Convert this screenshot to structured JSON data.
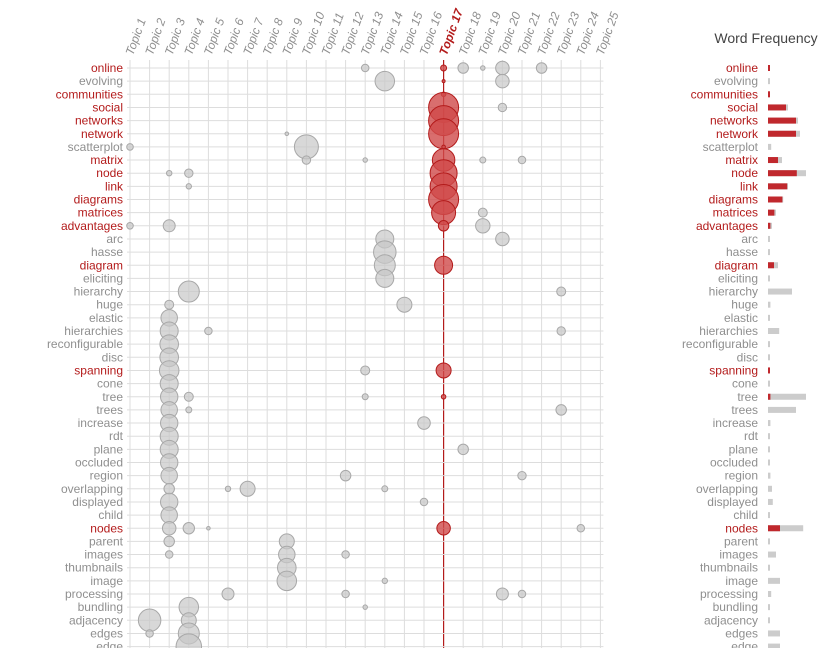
{
  "colors": {
    "highlight": "#b31b1b",
    "muted": "#8f8f8f",
    "bubble_fill": "#c8c8c8",
    "bubble_stroke": "#a8a8a8",
    "highlight_fill": "#cf4a4a",
    "grid": "#dddddd",
    "bar_grey": "#cccccc",
    "bar_red": "#c0282d"
  },
  "frequency_panel": {
    "title": "Word Frequency"
  },
  "chart_data": {
    "type": "scatter",
    "subtype": "termite-bubble-matrix",
    "selected_topic": "Topic 17",
    "topics": [
      "Topic 1",
      "Topic 2",
      "Topic 3",
      "Topic 4",
      "Topic 5",
      "Topic 6",
      "Topic 7",
      "Topic 8",
      "Topic 9",
      "Topic 10",
      "Topic 11",
      "Topic 12",
      "Topic 13",
      "Topic 14",
      "Topic 15",
      "Topic 16",
      "Topic 17",
      "Topic 18",
      "Topic 19",
      "Topic 20",
      "Topic 21",
      "Topic 22",
      "Topic 23",
      "Topic 24",
      "Topic 25"
    ],
    "words": [
      {
        "w": "online",
        "hl": true,
        "fg": 0.04,
        "fr": 0.03
      },
      {
        "w": "evolving",
        "hl": false,
        "fg": 0.03,
        "fr": 0
      },
      {
        "w": "communities",
        "hl": true,
        "fg": 0.03,
        "fr": 0.03
      },
      {
        "w": "social",
        "hl": true,
        "fg": 0.5,
        "fr": 0.45
      },
      {
        "w": "networks",
        "hl": true,
        "fg": 0.75,
        "fr": 0.7
      },
      {
        "w": "network",
        "hl": true,
        "fg": 0.8,
        "fr": 0.7
      },
      {
        "w": "scatterplot",
        "hl": false,
        "fg": 0.08,
        "fr": 0
      },
      {
        "w": "matrix",
        "hl": true,
        "fg": 0.35,
        "fr": 0.25
      },
      {
        "w": "node",
        "hl": true,
        "fg": 0.95,
        "fr": 0.72
      },
      {
        "w": "link",
        "hl": true,
        "fg": 0.5,
        "fr": 0.48
      },
      {
        "w": "diagrams",
        "hl": true,
        "fg": 0.38,
        "fr": 0.36
      },
      {
        "w": "matrices",
        "hl": true,
        "fg": 0.2,
        "fr": 0.16
      },
      {
        "w": "advantages",
        "hl": true,
        "fg": 0.1,
        "fr": 0.06
      },
      {
        "w": "arc",
        "hl": false,
        "fg": 0.04,
        "fr": 0
      },
      {
        "w": "hasse",
        "hl": false,
        "fg": 0.02,
        "fr": 0
      },
      {
        "w": "diagram",
        "hl": true,
        "fg": 0.25,
        "fr": 0.15
      },
      {
        "w": "eliciting",
        "hl": false,
        "fg": 0.02,
        "fr": 0
      },
      {
        "w": "hierarchy",
        "hl": false,
        "fg": 0.6,
        "fr": 0
      },
      {
        "w": "huge",
        "hl": false,
        "fg": 0.06,
        "fr": 0
      },
      {
        "w": "elastic",
        "hl": false,
        "fg": 0.03,
        "fr": 0
      },
      {
        "w": "hierarchies",
        "hl": false,
        "fg": 0.28,
        "fr": 0
      },
      {
        "w": "reconfigurable",
        "hl": false,
        "fg": 0.02,
        "fr": 0
      },
      {
        "w": "disc",
        "hl": false,
        "fg": 0.02,
        "fr": 0
      },
      {
        "w": "spanning",
        "hl": true,
        "fg": 0.04,
        "fr": 0.03
      },
      {
        "w": "cone",
        "hl": false,
        "fg": 0.04,
        "fr": 0
      },
      {
        "w": "tree",
        "hl": false,
        "fg": 0.95,
        "fr": 0.06
      },
      {
        "w": "trees",
        "hl": false,
        "fg": 0.7,
        "fr": 0
      },
      {
        "w": "increase",
        "hl": false,
        "fg": 0.06,
        "fr": 0
      },
      {
        "w": "rdt",
        "hl": false,
        "fg": 0.02,
        "fr": 0
      },
      {
        "w": "plane",
        "hl": false,
        "fg": 0.05,
        "fr": 0
      },
      {
        "w": "occluded",
        "hl": false,
        "fg": 0.02,
        "fr": 0
      },
      {
        "w": "region",
        "hl": false,
        "fg": 0.06,
        "fr": 0
      },
      {
        "w": "overlapping",
        "hl": false,
        "fg": 0.1,
        "fr": 0
      },
      {
        "w": "displayed",
        "hl": false,
        "fg": 0.12,
        "fr": 0
      },
      {
        "w": "child",
        "hl": false,
        "fg": 0.03,
        "fr": 0
      },
      {
        "w": "nodes",
        "hl": true,
        "fg": 0.88,
        "fr": 0.3
      },
      {
        "w": "parent",
        "hl": false,
        "fg": 0.04,
        "fr": 0
      },
      {
        "w": "images",
        "hl": false,
        "fg": 0.2,
        "fr": 0
      },
      {
        "w": "thumbnails",
        "hl": false,
        "fg": 0.05,
        "fr": 0
      },
      {
        "w": "image",
        "hl": false,
        "fg": 0.3,
        "fr": 0
      },
      {
        "w": "processing",
        "hl": false,
        "fg": 0.08,
        "fr": 0
      },
      {
        "w": "bundling",
        "hl": false,
        "fg": 0.02,
        "fr": 0
      },
      {
        "w": "adjacency",
        "hl": false,
        "fg": 0.04,
        "fr": 0
      },
      {
        "w": "edges",
        "hl": false,
        "fg": 0.3,
        "fr": 0
      },
      {
        "w": "edge",
        "hl": false,
        "fg": 0.3,
        "fr": 0
      }
    ],
    "bubbles": [
      [
        0,
        12,
        0.25
      ],
      [
        0,
        16,
        0.2
      ],
      [
        0,
        17,
        0.35
      ],
      [
        0,
        18,
        0.15
      ],
      [
        0,
        19,
        0.45
      ],
      [
        0,
        21,
        0.35
      ],
      [
        1,
        13,
        0.65
      ],
      [
        1,
        16,
        0.1
      ],
      [
        1,
        19,
        0.45
      ],
      [
        2,
        16,
        0.15
      ],
      [
        3,
        16,
        1.0
      ],
      [
        3,
        19,
        0.28
      ],
      [
        4,
        16,
        1.0
      ],
      [
        5,
        16,
        1.0
      ],
      [
        5,
        8,
        0.12
      ],
      [
        6,
        0,
        0.22
      ],
      [
        6,
        9,
        0.8
      ],
      [
        6,
        16,
        0.12
      ],
      [
        7,
        9,
        0.28
      ],
      [
        7,
        12,
        0.15
      ],
      [
        7,
        16,
        0.75
      ],
      [
        7,
        18,
        0.2
      ],
      [
        7,
        20,
        0.25
      ],
      [
        8,
        2,
        0.18
      ],
      [
        8,
        3,
        0.28
      ],
      [
        8,
        16,
        0.9
      ],
      [
        9,
        3,
        0.18
      ],
      [
        9,
        16,
        0.9
      ],
      [
        10,
        16,
        1.0
      ],
      [
        11,
        16,
        0.8
      ],
      [
        11,
        18,
        0.3
      ],
      [
        12,
        0,
        0.22
      ],
      [
        12,
        2,
        0.4
      ],
      [
        12,
        16,
        0.35
      ],
      [
        12,
        18,
        0.48
      ],
      [
        13,
        13,
        0.6
      ],
      [
        13,
        19,
        0.45
      ],
      [
        14,
        13,
        0.75
      ],
      [
        15,
        13,
        0.7
      ],
      [
        15,
        16,
        0.6
      ],
      [
        16,
        13,
        0.6
      ],
      [
        17,
        3,
        0.7
      ],
      [
        17,
        22,
        0.3
      ],
      [
        18,
        2,
        0.3
      ],
      [
        18,
        14,
        0.5
      ],
      [
        19,
        2,
        0.55
      ],
      [
        20,
        2,
        0.6
      ],
      [
        20,
        4,
        0.25
      ],
      [
        20,
        22,
        0.28
      ],
      [
        21,
        2,
        0.62
      ],
      [
        22,
        2,
        0.62
      ],
      [
        23,
        2,
        0.65
      ],
      [
        23,
        12,
        0.3
      ],
      [
        23,
        16,
        0.5
      ],
      [
        24,
        2,
        0.6
      ],
      [
        25,
        2,
        0.58
      ],
      [
        25,
        3,
        0.3
      ],
      [
        25,
        12,
        0.2
      ],
      [
        25,
        16,
        0.15
      ],
      [
        26,
        2,
        0.55
      ],
      [
        26,
        3,
        0.2
      ],
      [
        26,
        22,
        0.35
      ],
      [
        27,
        2,
        0.58
      ],
      [
        27,
        15,
        0.42
      ],
      [
        28,
        2,
        0.6
      ],
      [
        29,
        2,
        0.6
      ],
      [
        29,
        17,
        0.35
      ],
      [
        30,
        2,
        0.58
      ],
      [
        31,
        2,
        0.55
      ],
      [
        31,
        11,
        0.35
      ],
      [
        31,
        20,
        0.28
      ],
      [
        32,
        2,
        0.35
      ],
      [
        32,
        5,
        0.18
      ],
      [
        32,
        6,
        0.5
      ],
      [
        32,
        13,
        0.2
      ],
      [
        33,
        2,
        0.58
      ],
      [
        33,
        15,
        0.25
      ],
      [
        34,
        2,
        0.55
      ],
      [
        35,
        2,
        0.45
      ],
      [
        35,
        3,
        0.38
      ],
      [
        35,
        4,
        0.12
      ],
      [
        35,
        16,
        0.45
      ],
      [
        35,
        23,
        0.25
      ],
      [
        36,
        2,
        0.35
      ],
      [
        36,
        8,
        0.5
      ],
      [
        37,
        2,
        0.25
      ],
      [
        37,
        8,
        0.55
      ],
      [
        37,
        11,
        0.25
      ],
      [
        38,
        8,
        0.62
      ],
      [
        39,
        8,
        0.65
      ],
      [
        39,
        13,
        0.18
      ],
      [
        40,
        5,
        0.4
      ],
      [
        40,
        11,
        0.25
      ],
      [
        40,
        19,
        0.4
      ],
      [
        40,
        20,
        0.25
      ],
      [
        41,
        3,
        0.65
      ],
      [
        41,
        12,
        0.15
      ],
      [
        42,
        1,
        0.75
      ],
      [
        42,
        3,
        0.5
      ],
      [
        43,
        1,
        0.25
      ],
      [
        43,
        3,
        0.7
      ],
      [
        44,
        3,
        0.85
      ]
    ]
  }
}
